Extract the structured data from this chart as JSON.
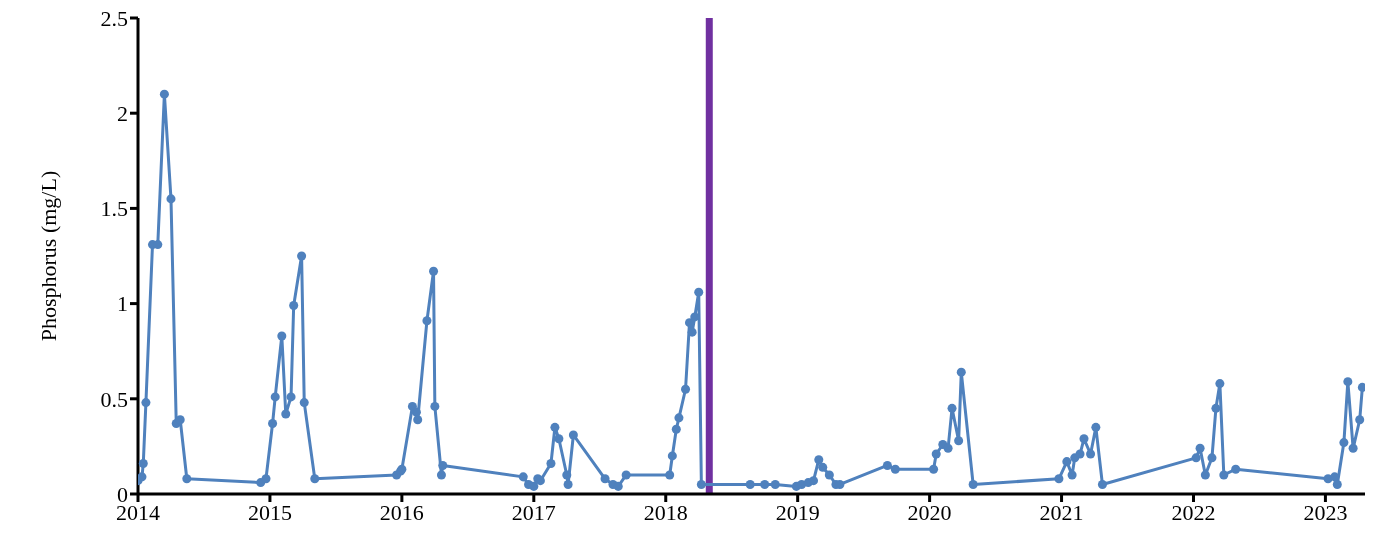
{
  "chart_data": {
    "type": "line",
    "ylabel": "Phosphorus (mg/L)",
    "xlim": [
      2014,
      2023.3
    ],
    "xticks": [
      2014,
      2015,
      2016,
      2017,
      2018,
      2019,
      2020,
      2021,
      2022,
      2023
    ],
    "ylim": [
      0,
      2.5
    ],
    "yticks": [
      0,
      0.5,
      1,
      1.5,
      2,
      2.5
    ],
    "marker": "circle",
    "line_style": "solid",
    "ref_lines": [
      {
        "axis": "x",
        "value": 2018.33,
        "color": "#7030a0",
        "line_style": "solid"
      }
    ],
    "series": [
      {
        "color": "#4f81bd",
        "x": [
          2014.0,
          2014.03,
          2014.04,
          2014.06,
          2014.11,
          2014.15,
          2014.2,
          2014.25,
          2014.29,
          2014.32,
          2014.37,
          2014.93,
          2014.97,
          2015.02,
          2015.04,
          2015.09,
          2015.12,
          2015.16,
          2015.18,
          2015.24,
          2015.26,
          2015.34,
          2015.96,
          2015.99,
          2016.0,
          2016.08,
          2016.11,
          2016.12,
          2016.19,
          2016.24,
          2016.25,
          2016.3,
          2016.31,
          2016.92,
          2016.96,
          2017.0,
          2017.03,
          2017.05,
          2017.13,
          2017.16,
          2017.19,
          2017.25,
          2017.26,
          2017.3,
          2017.54,
          2017.6,
          2017.64,
          2017.7,
          2018.03,
          2018.05,
          2018.08,
          2018.1,
          2018.15,
          2018.18,
          2018.2,
          2018.22,
          2018.25,
          2018.27,
          2018.64,
          2018.75,
          2018.83,
          2018.99,
          2019.03,
          2019.08,
          2019.12,
          2019.16,
          2019.19,
          2019.24,
          2019.29,
          2019.32,
          2019.68,
          2019.74,
          2020.03,
          2020.05,
          2020.1,
          2020.14,
          2020.17,
          2020.22,
          2020.24,
          2020.33,
          2020.98,
          2021.04,
          2021.08,
          2021.1,
          2021.14,
          2021.17,
          2021.22,
          2021.26,
          2021.31,
          2022.02,
          2022.05,
          2022.09,
          2022.14,
          2022.17,
          2022.2,
          2022.23,
          2022.32,
          2023.02,
          2023.07,
          2023.09,
          2023.14,
          2023.17,
          2023.21,
          2023.26,
          2023.28
        ],
        "values": [
          0.07,
          0.09,
          0.16,
          0.48,
          1.31,
          1.31,
          2.1,
          1.55,
          0.37,
          0.39,
          0.08,
          0.06,
          0.08,
          0.37,
          0.51,
          0.83,
          0.42,
          0.51,
          0.99,
          1.25,
          0.48,
          0.08,
          0.1,
          0.12,
          0.13,
          0.46,
          0.43,
          0.39,
          0.91,
          1.17,
          0.46,
          0.1,
          0.15,
          0.09,
          0.05,
          0.04,
          0.08,
          0.07,
          0.16,
          0.35,
          0.29,
          0.1,
          0.05,
          0.31,
          0.08,
          0.05,
          0.04,
          0.1,
          0.1,
          0.2,
          0.34,
          0.4,
          0.55,
          0.9,
          0.85,
          0.93,
          1.06,
          0.05,
          0.05,
          0.05,
          0.05,
          0.04,
          0.05,
          0.06,
          0.07,
          0.18,
          0.14,
          0.1,
          0.05,
          0.05,
          0.15,
          0.13,
          0.13,
          0.21,
          0.26,
          0.24,
          0.45,
          0.28,
          0.64,
          0.05,
          0.08,
          0.17,
          0.1,
          0.19,
          0.21,
          0.29,
          0.21,
          0.35,
          0.05,
          0.19,
          0.24,
          0.1,
          0.19,
          0.45,
          0.58,
          0.1,
          0.13,
          0.08,
          0.09,
          0.05,
          0.27,
          0.59,
          0.24,
          0.39,
          0.56
        ]
      }
    ]
  }
}
